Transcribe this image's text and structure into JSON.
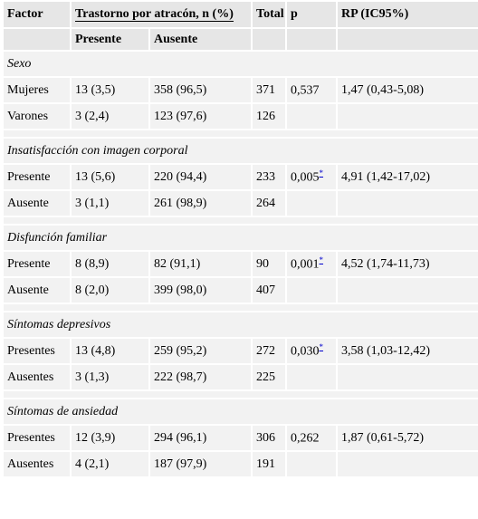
{
  "header": {
    "factor": "Factor",
    "trastorno": "Trastorno por atracón, n (%)",
    "total": "Total",
    "p": "p",
    "rp": "RP (IC95%)",
    "presente": "Presente",
    "ausente": "Ausente"
  },
  "groups": [
    {
      "title": "Sexo",
      "rows": [
        {
          "label": "Mujeres",
          "presente": "13 (3,5)",
          "ausente": "358 (96,5)",
          "total": "371",
          "p": "0,537",
          "star": "",
          "rp": "1,47 (0,43-5,08)"
        },
        {
          "label": "Varones",
          "presente": "3 (2,4)",
          "ausente": "123 (97,6)",
          "total": "126",
          "p": "",
          "star": "",
          "rp": ""
        }
      ]
    },
    {
      "title": "Insatisfacción con imagen corporal",
      "rows": [
        {
          "label": "Presente",
          "presente": "13 (5,6)",
          "ausente": "220 (94,4)",
          "total": "233",
          "p": "0,005",
          "star": "*",
          "rp": "4,91 (1,42-17,02)"
        },
        {
          "label": "Ausente",
          "presente": "3 (1,1)",
          "ausente": "261 (98,9)",
          "total": "264",
          "p": "",
          "star": "",
          "rp": ""
        }
      ]
    },
    {
      "title": "Disfunción familiar",
      "rows": [
        {
          "label": "Presente",
          "presente": "8 (8,9)",
          "ausente": "82 (91,1)",
          "total": "90",
          "p": "0,001",
          "star": "*",
          "rp": "4,52 (1,74-11,73)"
        },
        {
          "label": "Ausente",
          "presente": "8 (2,0)",
          "ausente": "399 (98,0)",
          "total": "407",
          "p": "",
          "star": "",
          "rp": ""
        }
      ]
    },
    {
      "title": "Síntomas depresivos",
      "rows": [
        {
          "label": "Presentes",
          "presente": "13 (4,8)",
          "ausente": "259 (95,2)",
          "total": "272",
          "p": "0,030",
          "star": "*",
          "rp": "3,58 (1,03-12,42)"
        },
        {
          "label": "Ausentes",
          "presente": "3 (1,3)",
          "ausente": "222 (98,7)",
          "total": "225",
          "p": "",
          "star": "",
          "rp": ""
        }
      ]
    },
    {
      "title": "Síntomas de ansiedad",
      "rows": [
        {
          "label": "Presentes",
          "presente": "12 (3,9)",
          "ausente": "294 (96,1)",
          "total": "306",
          "p": "0,262",
          "star": "",
          "rp": "1,87 (0,61-5,72)"
        },
        {
          "label": "Ausentes",
          "presente": "4 (2,1)",
          "ausente": "187 (97,9)",
          "total": "191",
          "p": "",
          "star": "",
          "rp": ""
        }
      ]
    }
  ]
}
